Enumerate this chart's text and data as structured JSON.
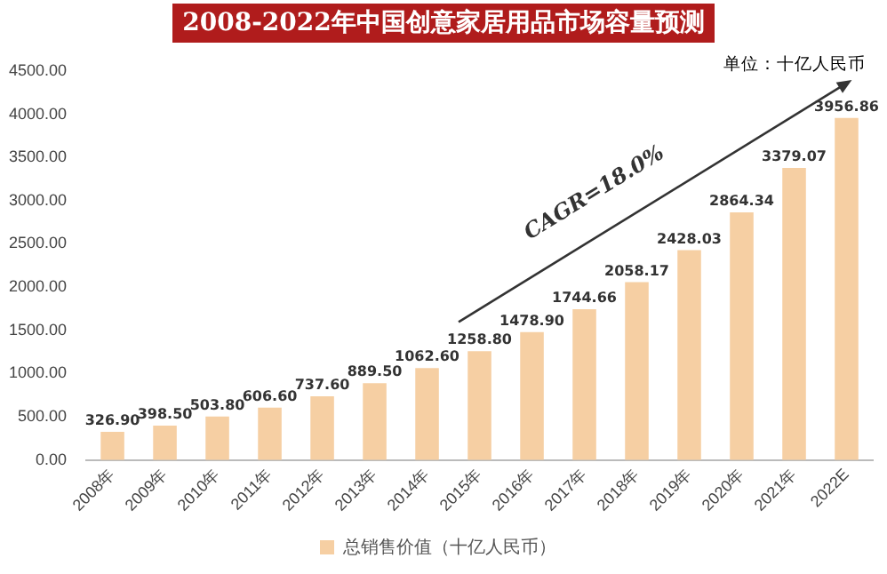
{
  "chart_data": {
    "type": "bar",
    "title": "2008-2022年中国创意家居用品市场容量预测",
    "categories": [
      "2008年",
      "2009年",
      "2010年",
      "2011年",
      "2012年",
      "2013年",
      "2014年",
      "2015年",
      "2016年",
      "2017年",
      "2018年",
      "2019年",
      "2020年",
      "2021年",
      "2022E"
    ],
    "series": [
      {
        "name": "总销售价值（十亿人民币）",
        "color": "#f6cfa3",
        "values": [
          326.9,
          398.5,
          503.8,
          606.6,
          737.6,
          889.5,
          1062.6,
          1258.8,
          1478.9,
          1744.66,
          2058.17,
          2428.03,
          2864.34,
          3379.07,
          3956.86
        ]
      }
    ],
    "value_labels": [
      "326.90",
      "398.50",
      "503.80",
      "606.60",
      "737.60",
      "889.50",
      "1062.60",
      "1258.80",
      "1478.90",
      "1744.66",
      "2058.17",
      "2428.03",
      "2864.34",
      "3379.07",
      "3956.86"
    ],
    "ylim": [
      0,
      4500
    ],
    "yticks": [
      {
        "value": 0,
        "label": "0.00"
      },
      {
        "value": 500,
        "label": "500.00"
      },
      {
        "value": 1000,
        "label": "1000.00"
      },
      {
        "value": 1500,
        "label": "1500.00"
      },
      {
        "value": 2000,
        "label": "2000.00"
      },
      {
        "value": 2500,
        "label": "2500.00"
      },
      {
        "value": 3000,
        "label": "3000.00"
      },
      {
        "value": 3500,
        "label": "3500.00"
      },
      {
        "value": 4000,
        "label": "4000.00"
      },
      {
        "value": 4500,
        "label": "4500.00"
      }
    ],
    "annotations": [
      "单位：十亿人民币",
      "CAGR=18.0%"
    ],
    "grid": false,
    "legend": "bottom"
  }
}
